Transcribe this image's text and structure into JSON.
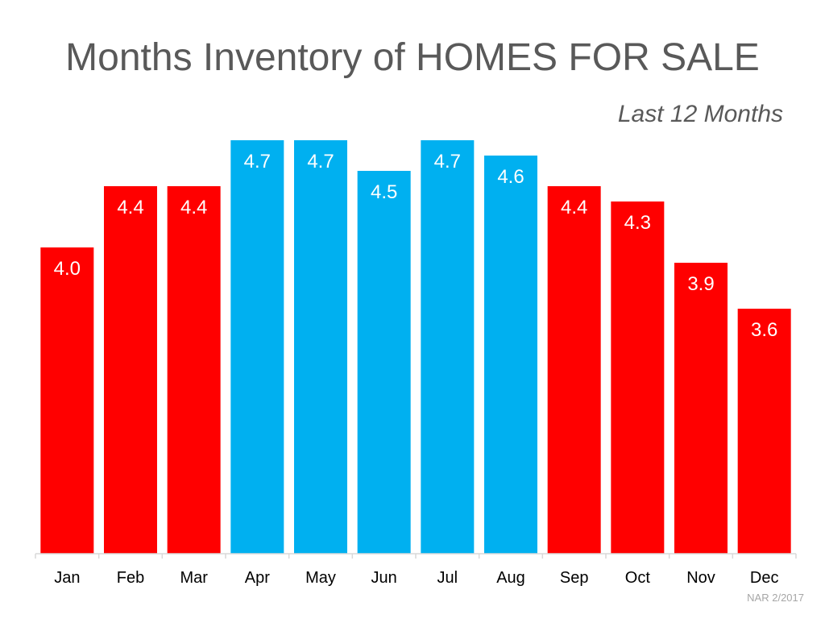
{
  "colors": {
    "high": "#00b0f0",
    "low": "#ff0000",
    "title": "#595959",
    "axis": "#d9d9d9",
    "tick_label": "#000000",
    "data_label": "#ffffff",
    "source": "#a6a6a6"
  },
  "header": {
    "title": "Months Inventory of HOMES FOR SALE",
    "subtitle": "Last 12 Months"
  },
  "footer": {
    "source": "NAR 2/2017"
  },
  "chart_data": {
    "type": "bar",
    "title": "Months Inventory of HOMES FOR SALE",
    "subtitle": "Last 12 Months",
    "xlabel": "",
    "ylabel": "",
    "categories": [
      "Jan",
      "Feb",
      "Mar",
      "Apr",
      "May",
      "Jun",
      "Jul",
      "Aug",
      "Sep",
      "Oct",
      "Nov",
      "Dec"
    ],
    "values": [
      4.0,
      4.4,
      4.4,
      4.7,
      4.7,
      4.5,
      4.7,
      4.6,
      4.4,
      4.3,
      3.9,
      3.6
    ],
    "labels": [
      "4.0",
      "4.4",
      "4.4",
      "4.7",
      "4.7",
      "4.5",
      "4.7",
      "4.6",
      "4.4",
      "4.3",
      "3.9",
      "3.6"
    ],
    "bar_colors": [
      "red",
      "red",
      "red",
      "blue",
      "blue",
      "blue",
      "blue",
      "blue",
      "red",
      "red",
      "red",
      "red"
    ],
    "ylim": [
      2.0,
      4.7
    ],
    "grid": false,
    "legend": "none"
  }
}
